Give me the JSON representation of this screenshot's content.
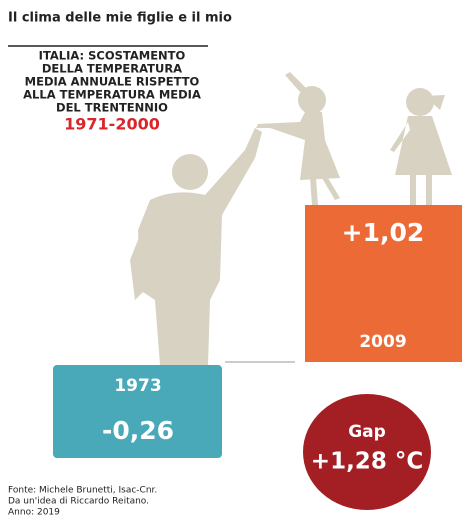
{
  "title": "Il clima delle mie figlie e il mio",
  "heading": [
    "ITALIA: SCOSTAMENTO",
    "DELLA TEMPERATURA",
    "MEDIA ANNUALE RISPETTO",
    "ALLA TEMPERATURA MEDIA",
    "DEL TRENTENNIO"
  ],
  "period": "1971-2000",
  "bars": [
    {
      "year": "1973",
      "value": "-0,26"
    },
    {
      "year": "2009",
      "value": "+1,02"
    }
  ],
  "gap": {
    "label": "Gap",
    "value": "+1,28 °C"
  },
  "source": [
    "Fonte: Michele Brunetti, Isac-Cnr.",
    "Da un'idea di Riccardo Reitano.",
    "Anno: 2019"
  ]
}
